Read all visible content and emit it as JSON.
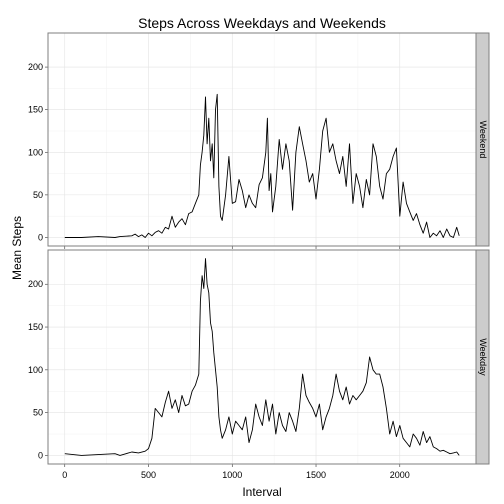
{
  "chart_data": {
    "type": "line",
    "title": "Steps Across Weekdays and Weekends",
    "xlabel": "Interval",
    "ylabel": "Mean Steps",
    "xlim": [
      -100,
      2455
    ],
    "ylim": [
      -10,
      240
    ],
    "x_ticks": [
      0,
      500,
      1000,
      1500,
      2000
    ],
    "y_ticks": [
      0,
      50,
      100,
      150,
      200
    ],
    "grid": true,
    "line_color": "#000000",
    "panels": [
      {
        "name": "Weekend",
        "x": [
          0,
          100,
          200,
          300,
          330,
          400,
          420,
          440,
          460,
          480,
          500,
          520,
          540,
          560,
          580,
          600,
          620,
          640,
          660,
          680,
          700,
          720,
          740,
          760,
          780,
          800,
          810,
          820,
          830,
          840,
          850,
          860,
          870,
          880,
          890,
          900,
          910,
          920,
          930,
          940,
          950,
          960,
          980,
          1000,
          1020,
          1040,
          1060,
          1080,
          1100,
          1120,
          1140,
          1160,
          1180,
          1200,
          1210,
          1220,
          1230,
          1240,
          1260,
          1280,
          1300,
          1320,
          1340,
          1360,
          1380,
          1400,
          1420,
          1440,
          1460,
          1480,
          1500,
          1520,
          1540,
          1560,
          1580,
          1600,
          1620,
          1640,
          1660,
          1680,
          1700,
          1720,
          1740,
          1760,
          1780,
          1800,
          1820,
          1840,
          1860,
          1880,
          1900,
          1920,
          1940,
          1960,
          1980,
          2000,
          2020,
          2040,
          2060,
          2080,
          2100,
          2120,
          2140,
          2160,
          2180,
          2200,
          2220,
          2240,
          2260,
          2280,
          2300,
          2320,
          2340,
          2355
        ],
        "y": [
          0,
          0,
          1,
          0,
          1,
          2,
          4,
          1,
          3,
          0,
          5,
          2,
          6,
          8,
          5,
          12,
          10,
          25,
          12,
          18,
          22,
          15,
          28,
          30,
          40,
          50,
          85,
          100,
          120,
          165,
          110,
          140,
          90,
          110,
          70,
          150,
          168,
          60,
          25,
          20,
          35,
          50,
          95,
          40,
          42,
          68,
          55,
          35,
          50,
          40,
          35,
          62,
          70,
          100,
          140,
          55,
          75,
          30,
          60,
          115,
          80,
          110,
          90,
          32,
          100,
          130,
          110,
          90,
          65,
          75,
          45,
          80,
          125,
          140,
          100,
          110,
          90,
          75,
          95,
          60,
          110,
          40,
          75,
          60,
          35,
          68,
          50,
          110,
          95,
          60,
          45,
          75,
          80,
          95,
          105,
          25,
          65,
          40,
          30,
          20,
          28,
          15,
          5,
          18,
          0,
          5,
          2,
          8,
          0,
          10,
          2,
          0,
          12,
          2
        ]
      },
      {
        "name": "Weekday",
        "x": [
          0,
          100,
          200,
          300,
          330,
          400,
          440,
          480,
          500,
          520,
          540,
          560,
          580,
          600,
          620,
          640,
          660,
          680,
          700,
          720,
          740,
          760,
          780,
          800,
          810,
          820,
          830,
          840,
          850,
          860,
          870,
          880,
          890,
          900,
          910,
          920,
          930,
          940,
          960,
          980,
          1000,
          1020,
          1040,
          1060,
          1080,
          1100,
          1120,
          1140,
          1160,
          1180,
          1200,
          1220,
          1240,
          1260,
          1280,
          1300,
          1320,
          1340,
          1360,
          1380,
          1400,
          1420,
          1440,
          1460,
          1480,
          1500,
          1520,
          1540,
          1560,
          1580,
          1600,
          1620,
          1640,
          1660,
          1680,
          1700,
          1720,
          1740,
          1760,
          1780,
          1800,
          1820,
          1840,
          1860,
          1880,
          1900,
          1920,
          1940,
          1960,
          1980,
          2000,
          2020,
          2040,
          2060,
          2080,
          2100,
          2120,
          2140,
          2160,
          2180,
          2200,
          2220,
          2240,
          2260,
          2280,
          2300,
          2320,
          2340,
          2355
        ],
        "y": [
          2,
          0,
          1,
          2,
          0,
          4,
          3,
          5,
          8,
          20,
          55,
          50,
          45,
          62,
          75,
          55,
          65,
          50,
          70,
          58,
          60,
          75,
          82,
          95,
          180,
          210,
          195,
          230,
          200,
          190,
          155,
          145,
          120,
          100,
          80,
          45,
          30,
          20,
          30,
          45,
          25,
          40,
          35,
          30,
          45,
          15,
          30,
          60,
          45,
          35,
          65,
          40,
          60,
          25,
          50,
          35,
          28,
          50,
          40,
          28,
          55,
          95,
          70,
          62,
          55,
          45,
          60,
          30,
          45,
          55,
          70,
          95,
          75,
          65,
          80,
          60,
          70,
          65,
          70,
          75,
          85,
          115,
          100,
          95,
          95,
          80,
          55,
          25,
          40,
          22,
          35,
          20,
          15,
          10,
          25,
          20,
          12,
          28,
          15,
          22,
          10,
          8,
          5,
          6,
          4,
          2,
          3,
          4,
          0
        ]
      }
    ]
  }
}
